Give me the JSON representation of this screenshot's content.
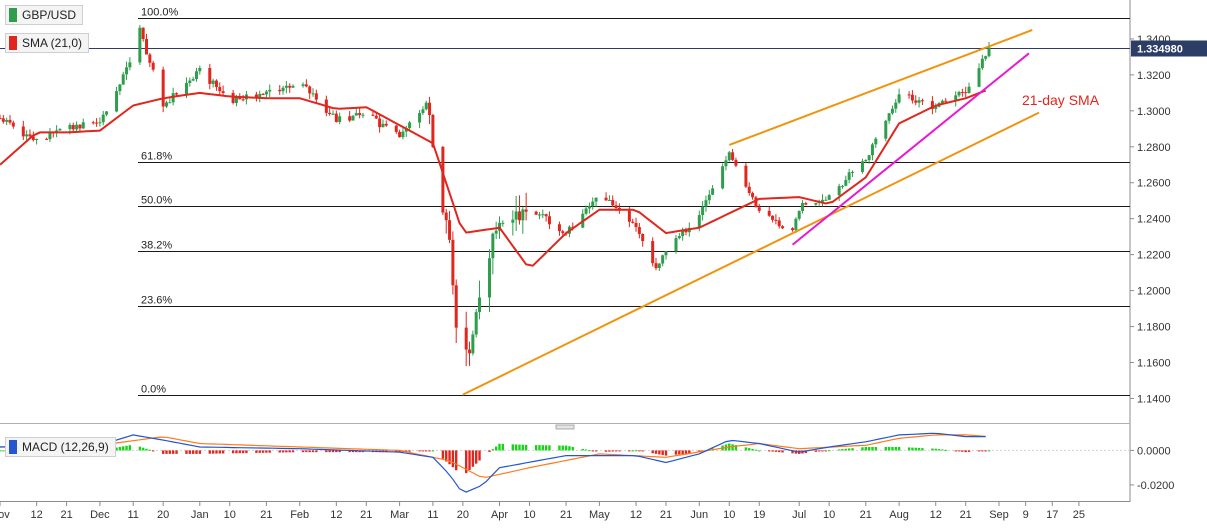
{
  "legend": {
    "symbol": "GBP/USD",
    "sma_label": "SMA (21,0)",
    "macd_label": "MACD (12,26,9)"
  },
  "colors": {
    "up": "#2e9e4d",
    "down": "#e0261d",
    "sma": "#e0261d",
    "channel": "#f0930e",
    "support": "#e61ad0",
    "macd_line": "#2357d0",
    "signal_line": "#ff7a1c",
    "fib": "#1a1a1a",
    "current_price": "#2c3e66"
  },
  "chart_data": [
    {
      "type": "candlestick",
      "title": "",
      "ylim": [
        1.128,
        1.36
      ],
      "y_ticks": [
        "1.1400",
        "1.1600",
        "1.1800",
        "1.2000",
        "1.2200",
        "1.2400",
        "1.2600",
        "1.2800",
        "1.3000",
        "1.3200",
        "1.3400"
      ],
      "x_ticks": [
        "Nov",
        "12",
        "21",
        "Dec",
        "11",
        "20",
        "Jan",
        "10",
        "21",
        "Feb",
        "12",
        "21",
        "Mar",
        "11",
        "20",
        "Apr",
        "10",
        "21",
        "May",
        "12",
        "21",
        "Jun",
        "10",
        "19",
        "Jul",
        "10",
        "21",
        "Aug",
        "12",
        "21",
        "Sep",
        "9",
        "17",
        "25"
      ],
      "current_price": {
        "label": "1.334980",
        "value": 1.33498
      },
      "fib_levels": [
        {
          "label": "100.0%",
          "value": 1.3515
        },
        {
          "label": "61.8%",
          "value": 1.2716
        },
        {
          "label": "50.0%",
          "value": 1.2469
        },
        {
          "label": "38.2%",
          "value": 1.2222
        },
        {
          "label": "23.6%",
          "value": 1.1916
        },
        {
          "label": "0.0%",
          "value": 1.1421
        }
      ],
      "annotations": [
        {
          "label": "21-day SMA"
        }
      ],
      "trend_lines": [
        {
          "name": "channel-top",
          "from": [
            "Jun 10",
            1.281
          ],
          "to": [
            "Sep 11",
            1.345
          ]
        },
        {
          "name": "channel-bottom",
          "from": [
            "Mar 20",
            1.1421
          ],
          "to": [
            "Sep 13",
            1.299
          ]
        },
        {
          "name": "support",
          "from": [
            "Jun 29",
            1.2255
          ],
          "to": [
            "Sep 10",
            1.332
          ]
        }
      ],
      "sma_anchors": [
        [
          "Nov 1",
          1.27
        ],
        [
          "Nov 12",
          1.288
        ],
        [
          "Nov 21",
          1.288
        ],
        [
          "Dec 1",
          1.289
        ],
        [
          "Dec 11",
          1.303
        ],
        [
          "Dec 20",
          1.307
        ],
        [
          "Jan 1",
          1.31
        ],
        [
          "Jan 10",
          1.308
        ],
        [
          "Jan 21",
          1.307
        ],
        [
          "Feb 1",
          1.307
        ],
        [
          "Feb 12",
          1.301
        ],
        [
          "Feb 21",
          1.302
        ],
        [
          "Mar 1",
          1.292
        ],
        [
          "Mar 11",
          1.282
        ],
        [
          "Mar 20",
          1.232
        ],
        [
          "Apr 1",
          1.235
        ],
        [
          "Apr 10",
          1.212
        ],
        [
          "Apr 21",
          1.232
        ],
        [
          "May 1",
          1.245
        ],
        [
          "May 12",
          1.245
        ],
        [
          "May 21",
          1.232
        ],
        [
          "Jun 1",
          1.235
        ],
        [
          "Jun 10",
          1.243
        ],
        [
          "Jun 19",
          1.251
        ],
        [
          "Jul 1",
          1.252
        ],
        [
          "Jul 10",
          1.248
        ],
        [
          "Jul 21",
          1.263
        ],
        [
          "Aug 1",
          1.293
        ],
        [
          "Aug 12",
          1.303
        ],
        [
          "Aug 21",
          1.307
        ],
        [
          "Aug 28",
          1.312
        ]
      ],
      "price_anchors": [
        [
          "Nov 1",
          1.296
        ],
        [
          "Nov 12",
          1.283
        ],
        [
          "Nov 21",
          1.29
        ],
        [
          "Dec 1",
          1.294
        ],
        [
          "Dec 11",
          1.33
        ],
        [
          "Dec 13",
          1.345
        ],
        [
          "Dec 20",
          1.303
        ],
        [
          "Jan 1",
          1.322
        ],
        [
          "Jan 10",
          1.306
        ],
        [
          "Jan 21",
          1.31
        ],
        [
          "Feb 1",
          1.316
        ],
        [
          "Feb 12",
          1.295
        ],
        [
          "Feb 21",
          1.298
        ],
        [
          "Mar 1",
          1.285
        ],
        [
          "Mar 9",
          1.305
        ],
        [
          "Mar 11",
          1.281
        ],
        [
          "Mar 16",
          1.228
        ],
        [
          "Mar 19",
          1.158
        ],
        [
          "Mar 20",
          1.153
        ],
        [
          "Mar 26",
          1.205
        ],
        [
          "Apr 1",
          1.241
        ],
        [
          "Apr 10",
          1.246
        ],
        [
          "Apr 21",
          1.232
        ],
        [
          "May 1",
          1.255
        ],
        [
          "May 12",
          1.234
        ],
        [
          "May 18",
          1.212
        ],
        [
          "May 21",
          1.221
        ],
        [
          "Jun 1",
          1.243
        ],
        [
          "Jun 10",
          1.275
        ],
        [
          "Jun 19",
          1.244
        ],
        [
          "Jun 29",
          1.232
        ],
        [
          "Jul 1",
          1.246
        ],
        [
          "Jul 10",
          1.253
        ],
        [
          "Jul 21",
          1.273
        ],
        [
          "Aug 1",
          1.31
        ],
        [
          "Aug 12",
          1.302
        ],
        [
          "Aug 21",
          1.311
        ],
        [
          "Aug 28",
          1.335
        ]
      ]
    },
    {
      "type": "macd",
      "title": "",
      "ylim": [
        -0.027,
        0.013
      ],
      "y_ticks": [
        "0.0000",
        "-0.0200"
      ],
      "macd_anchors": [
        [
          "Nov 1",
          0.002
        ],
        [
          "Dec 1",
          0.003
        ],
        [
          "Dec 11",
          0.009
        ],
        [
          "Dec 20",
          0.006
        ],
        [
          "Jan 1",
          0.002
        ],
        [
          "Feb 1",
          0.001
        ],
        [
          "Mar 1",
          -0.001
        ],
        [
          "Mar 11",
          -0.004
        ],
        [
          "Mar 16",
          -0.014
        ],
        [
          "Mar 20",
          -0.025
        ],
        [
          "Mar 26",
          -0.02
        ],
        [
          "Apr 1",
          -0.01
        ],
        [
          "Apr 21",
          -0.003
        ],
        [
          "May 12",
          -0.003
        ],
        [
          "May 21",
          -0.007
        ],
        [
          "Jun 1",
          -0.002
        ],
        [
          "Jun 10",
          0.006
        ],
        [
          "Jun 19",
          0.004
        ],
        [
          "Jul 1",
          -0.001
        ],
        [
          "Jul 10",
          0.002
        ],
        [
          "Jul 21",
          0.005
        ],
        [
          "Aug 1",
          0.009
        ],
        [
          "Aug 12",
          0.01
        ],
        [
          "Aug 21",
          0.008
        ],
        [
          "Aug 28",
          0.008
        ]
      ],
      "signal_anchors": [
        [
          "Nov 1",
          0.002
        ],
        [
          "Dec 1",
          0.003
        ],
        [
          "Dec 20",
          0.008
        ],
        [
          "Jan 1",
          0.004
        ],
        [
          "Feb 1",
          0.002
        ],
        [
          "Mar 1",
          0.0
        ],
        [
          "Mar 16",
          -0.006
        ],
        [
          "Mar 26",
          -0.016
        ],
        [
          "Apr 10",
          -0.01
        ],
        [
          "May 1",
          -0.002
        ],
        [
          "May 21",
          -0.004
        ],
        [
          "Jun 10",
          0.002
        ],
        [
          "Jun 19",
          0.004
        ],
        [
          "Jul 1",
          0.001
        ],
        [
          "Jul 21",
          0.003
        ],
        [
          "Aug 1",
          0.007
        ],
        [
          "Aug 12",
          0.009
        ],
        [
          "Aug 21",
          0.009
        ],
        [
          "Aug 28",
          0.008
        ]
      ]
    }
  ]
}
